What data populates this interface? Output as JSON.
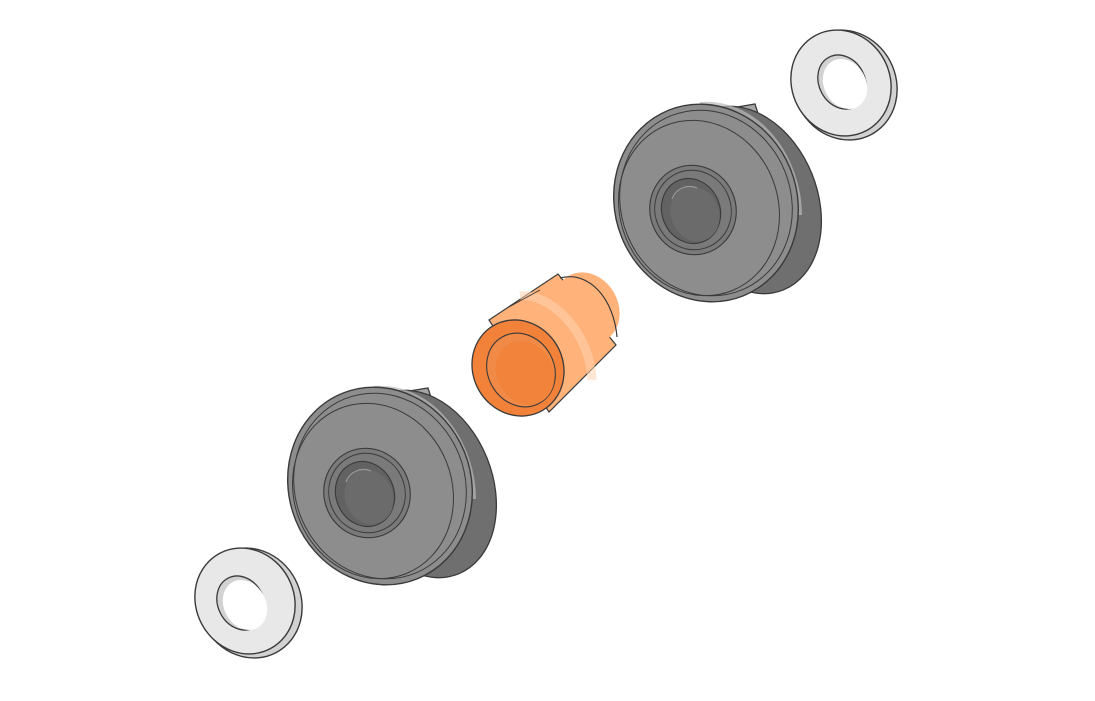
{
  "colors": {
    "background": "#ffffff",
    "outline": "#3a3a3a",
    "washer_face": "#e8e8e8",
    "washer_rim": "#d2d2d2",
    "washer_bore": "#ffffff",
    "bearing_face": "#8d8d8d",
    "bearing_side_light": "#a6a6a6",
    "bearing_side_dark": "#6f6f6f",
    "bearing_inner_race": "#7a7a7a",
    "bearing_bore": "#626262",
    "spacer_face": "#f2823a",
    "spacer_side_light": "#ffb27a",
    "spacer_side_dark": "#e66a1c",
    "spacer_bore": "#f08a46"
  },
  "parts": [
    {
      "name": "washer",
      "icon": "washer-icon"
    },
    {
      "name": "ball-bearing",
      "icon": "bearing-icon"
    },
    {
      "name": "spacer-sleeve",
      "icon": "sleeve-icon"
    },
    {
      "name": "ball-bearing",
      "icon": "bearing-icon"
    },
    {
      "name": "washer",
      "icon": "washer-icon"
    }
  ]
}
